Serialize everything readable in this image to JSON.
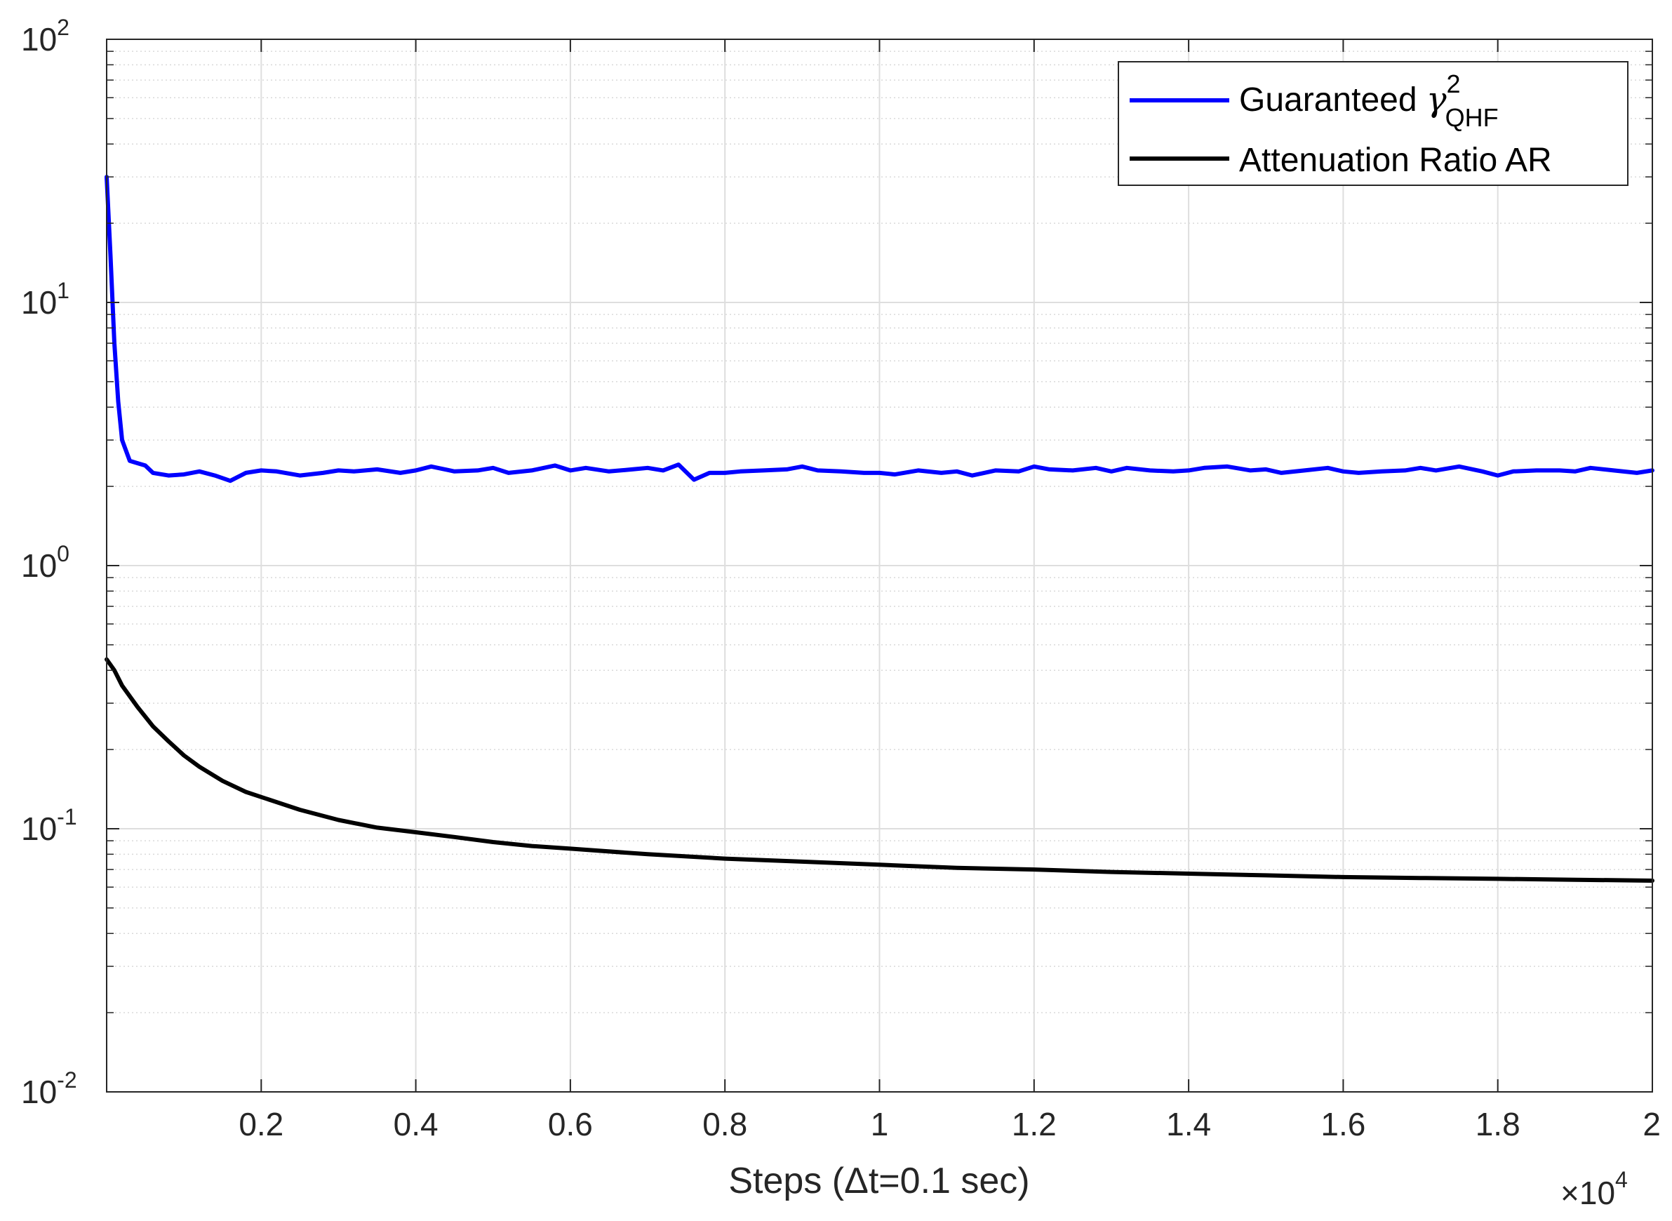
{
  "chart_data": {
    "type": "line",
    "title": "",
    "xlabel": "Steps (Δt=0.1 sec)",
    "x_multiplier": {
      "base": "×10",
      "exponent": "4"
    },
    "ylabel": "",
    "xlim": [
      0,
      2
    ],
    "ylim": [
      0.01,
      100
    ],
    "yscale": "log",
    "grid": true,
    "x_ticks": [
      {
        "value": 0.2,
        "label": "0.2"
      },
      {
        "value": 0.4,
        "label": "0.4"
      },
      {
        "value": 0.6,
        "label": "0.6"
      },
      {
        "value": 0.8,
        "label": "0.8"
      },
      {
        "value": 1,
        "label": "1"
      },
      {
        "value": 1.2,
        "label": "1.2"
      },
      {
        "value": 1.4,
        "label": "1.4"
      },
      {
        "value": 1.6,
        "label": "1.6"
      },
      {
        "value": 1.8,
        "label": "1.8"
      },
      {
        "value": 2,
        "label": "2"
      }
    ],
    "y_ticks": [
      {
        "value": 0.01,
        "base": "10",
        "exponent": "-2"
      },
      {
        "value": 0.1,
        "base": "10",
        "exponent": "-1"
      },
      {
        "value": 1,
        "base": "10",
        "exponent": "0"
      },
      {
        "value": 10,
        "base": "10",
        "exponent": "1"
      },
      {
        "value": 100,
        "base": "10",
        "exponent": "2"
      }
    ],
    "legend": {
      "position": "top-right",
      "entries": [
        {
          "prefix": "Guaranteed ",
          "symbol": "γ",
          "superscript": "2",
          "subscript": "QHF",
          "color": "#0000ff"
        },
        {
          "prefix": "Attenuation Ratio AR",
          "symbol": "",
          "superscript": "",
          "subscript": "",
          "color": "#000000"
        }
      ]
    },
    "series": [
      {
        "color": "#0000ff",
        "x": [
          0.0,
          0.005,
          0.01,
          0.015,
          0.02,
          0.03,
          0.04,
          0.05,
          0.06,
          0.08,
          0.1,
          0.12,
          0.14,
          0.16,
          0.18,
          0.2,
          0.22,
          0.25,
          0.28,
          0.3,
          0.32,
          0.35,
          0.38,
          0.4,
          0.42,
          0.45,
          0.48,
          0.5,
          0.52,
          0.55,
          0.58,
          0.6,
          0.62,
          0.65,
          0.68,
          0.7,
          0.72,
          0.74,
          0.76,
          0.78,
          0.8,
          0.82,
          0.85,
          0.88,
          0.9,
          0.92,
          0.95,
          0.98,
          1.0,
          1.02,
          1.05,
          1.08,
          1.1,
          1.12,
          1.15,
          1.18,
          1.2,
          1.22,
          1.25,
          1.28,
          1.3,
          1.32,
          1.35,
          1.38,
          1.4,
          1.42,
          1.45,
          1.48,
          1.5,
          1.52,
          1.55,
          1.58,
          1.6,
          1.62,
          1.65,
          1.68,
          1.7,
          1.72,
          1.75,
          1.78,
          1.8,
          1.82,
          1.85,
          1.88,
          1.9,
          1.92,
          1.95,
          1.98,
          2.0
        ],
        "y": [
          30,
          15,
          7,
          4.2,
          3.0,
          2.5,
          2.45,
          2.4,
          2.25,
          2.2,
          2.22,
          2.28,
          2.2,
          2.1,
          2.25,
          2.3,
          2.28,
          2.2,
          2.25,
          2.3,
          2.28,
          2.32,
          2.25,
          2.3,
          2.38,
          2.28,
          2.3,
          2.35,
          2.25,
          2.3,
          2.4,
          2.3,
          2.35,
          2.28,
          2.32,
          2.35,
          2.3,
          2.42,
          2.12,
          2.25,
          2.25,
          2.28,
          2.3,
          2.32,
          2.38,
          2.3,
          2.28,
          2.25,
          2.25,
          2.22,
          2.3,
          2.25,
          2.28,
          2.2,
          2.3,
          2.28,
          2.38,
          2.32,
          2.3,
          2.35,
          2.28,
          2.35,
          2.3,
          2.28,
          2.3,
          2.35,
          2.38,
          2.3,
          2.32,
          2.25,
          2.3,
          2.35,
          2.28,
          2.25,
          2.28,
          2.3,
          2.35,
          2.3,
          2.38,
          2.28,
          2.2,
          2.28,
          2.3,
          2.3,
          2.28,
          2.35,
          2.3,
          2.25,
          2.3
        ]
      },
      {
        "color": "#000000",
        "x": [
          0.0,
          0.01,
          0.02,
          0.04,
          0.06,
          0.08,
          0.1,
          0.12,
          0.15,
          0.18,
          0.2,
          0.25,
          0.3,
          0.35,
          0.4,
          0.45,
          0.5,
          0.55,
          0.6,
          0.7,
          0.8,
          0.9,
          1.0,
          1.1,
          1.2,
          1.3,
          1.4,
          1.5,
          1.6,
          1.7,
          1.8,
          1.9,
          2.0
        ],
        "y": [
          0.44,
          0.4,
          0.35,
          0.29,
          0.245,
          0.215,
          0.19,
          0.172,
          0.152,
          0.138,
          0.132,
          0.118,
          0.108,
          0.101,
          0.097,
          0.093,
          0.089,
          0.086,
          0.084,
          0.08,
          0.077,
          0.075,
          0.073,
          0.071,
          0.07,
          0.0685,
          0.0675,
          0.0665,
          0.0655,
          0.065,
          0.0645,
          0.064,
          0.0635
        ]
      }
    ]
  }
}
